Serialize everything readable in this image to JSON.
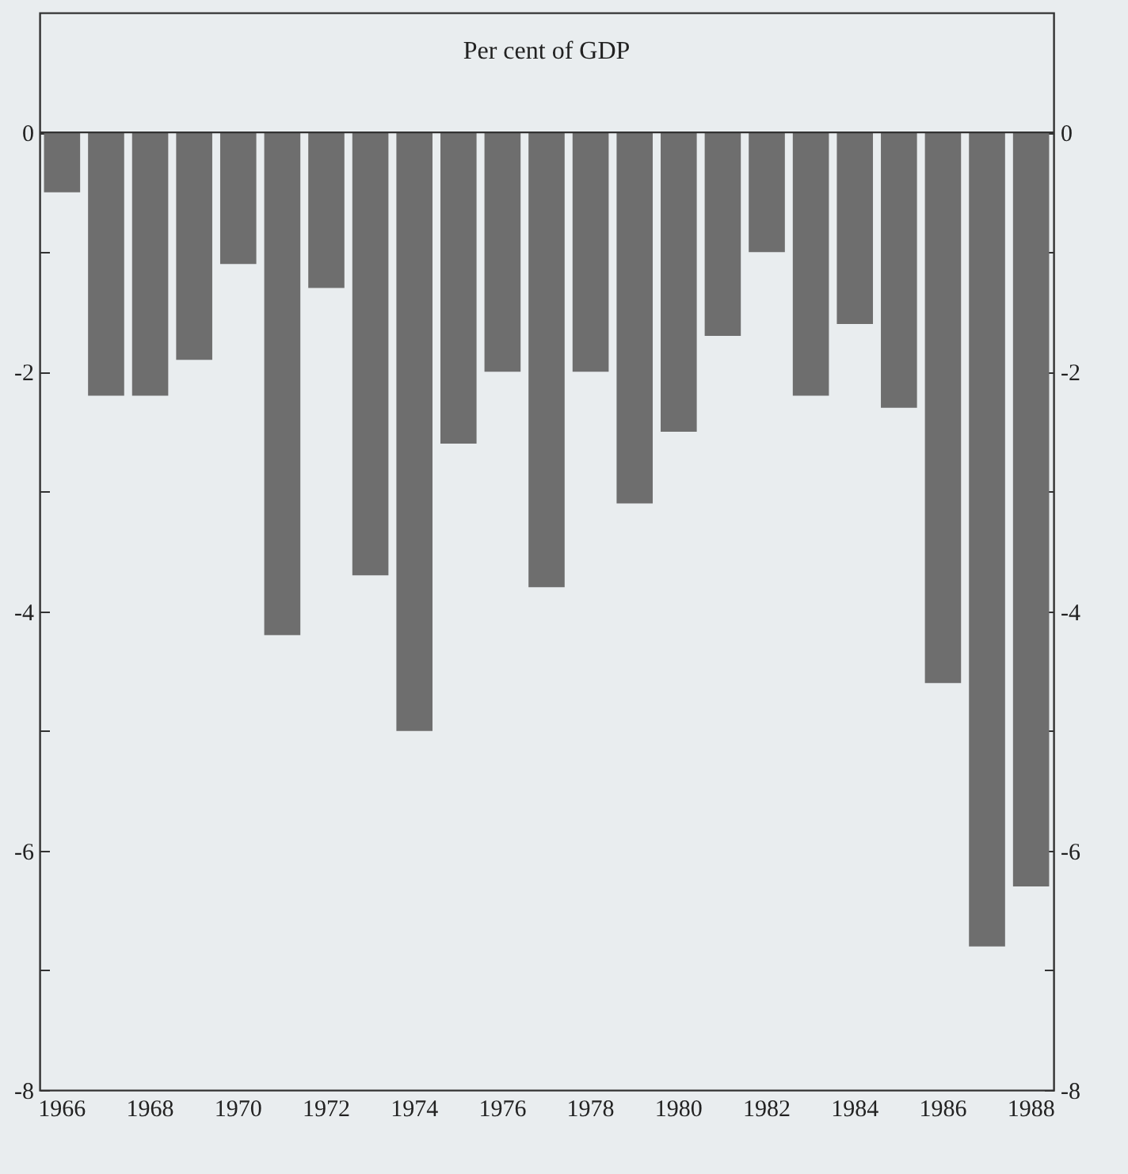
{
  "chart_data": {
    "type": "bar",
    "title": "Per cent of GDP",
    "categories": [
      "1966",
      null,
      "1968",
      null,
      "1970",
      null,
      "1972",
      null,
      "1974",
      null,
      "1976",
      null,
      "1978",
      null,
      "1980",
      null,
      "1982",
      null,
      "1984",
      null,
      "1986",
      null,
      "1988"
    ],
    "values": [
      -0.5,
      -2.2,
      -2.2,
      -1.9,
      -1.1,
      -4.2,
      -1.3,
      -3.7,
      -5.0,
      -2.6,
      -2.0,
      -3.8,
      -2.0,
      -3.1,
      -2.5,
      -1.7,
      -1.0,
      -2.2,
      -1.6,
      -2.3,
      -4.6,
      -6.8,
      -6.3
    ],
    "color": "#6e6e6e",
    "ylim": [
      -8,
      1
    ],
    "yticks": [
      0,
      {
        "value": -1,
        "label": null
      },
      -2,
      {
        "value": -3,
        "label": null
      },
      -4,
      {
        "value": -5,
        "label": null
      },
      -6,
      {
        "value": -7,
        "label": null
      },
      -8
    ],
    "y2lim": [
      -8,
      1
    ],
    "y2ticks": [
      0,
      {
        "value": -1,
        "label": null
      },
      -2,
      {
        "value": -3,
        "label": null
      },
      -4,
      {
        "value": -5,
        "label": null
      },
      -6,
      {
        "value": -7,
        "label": null
      },
      -8
    ],
    "ref_lines": [
      {
        "axis": "y",
        "value": 0
      }
    ]
  }
}
